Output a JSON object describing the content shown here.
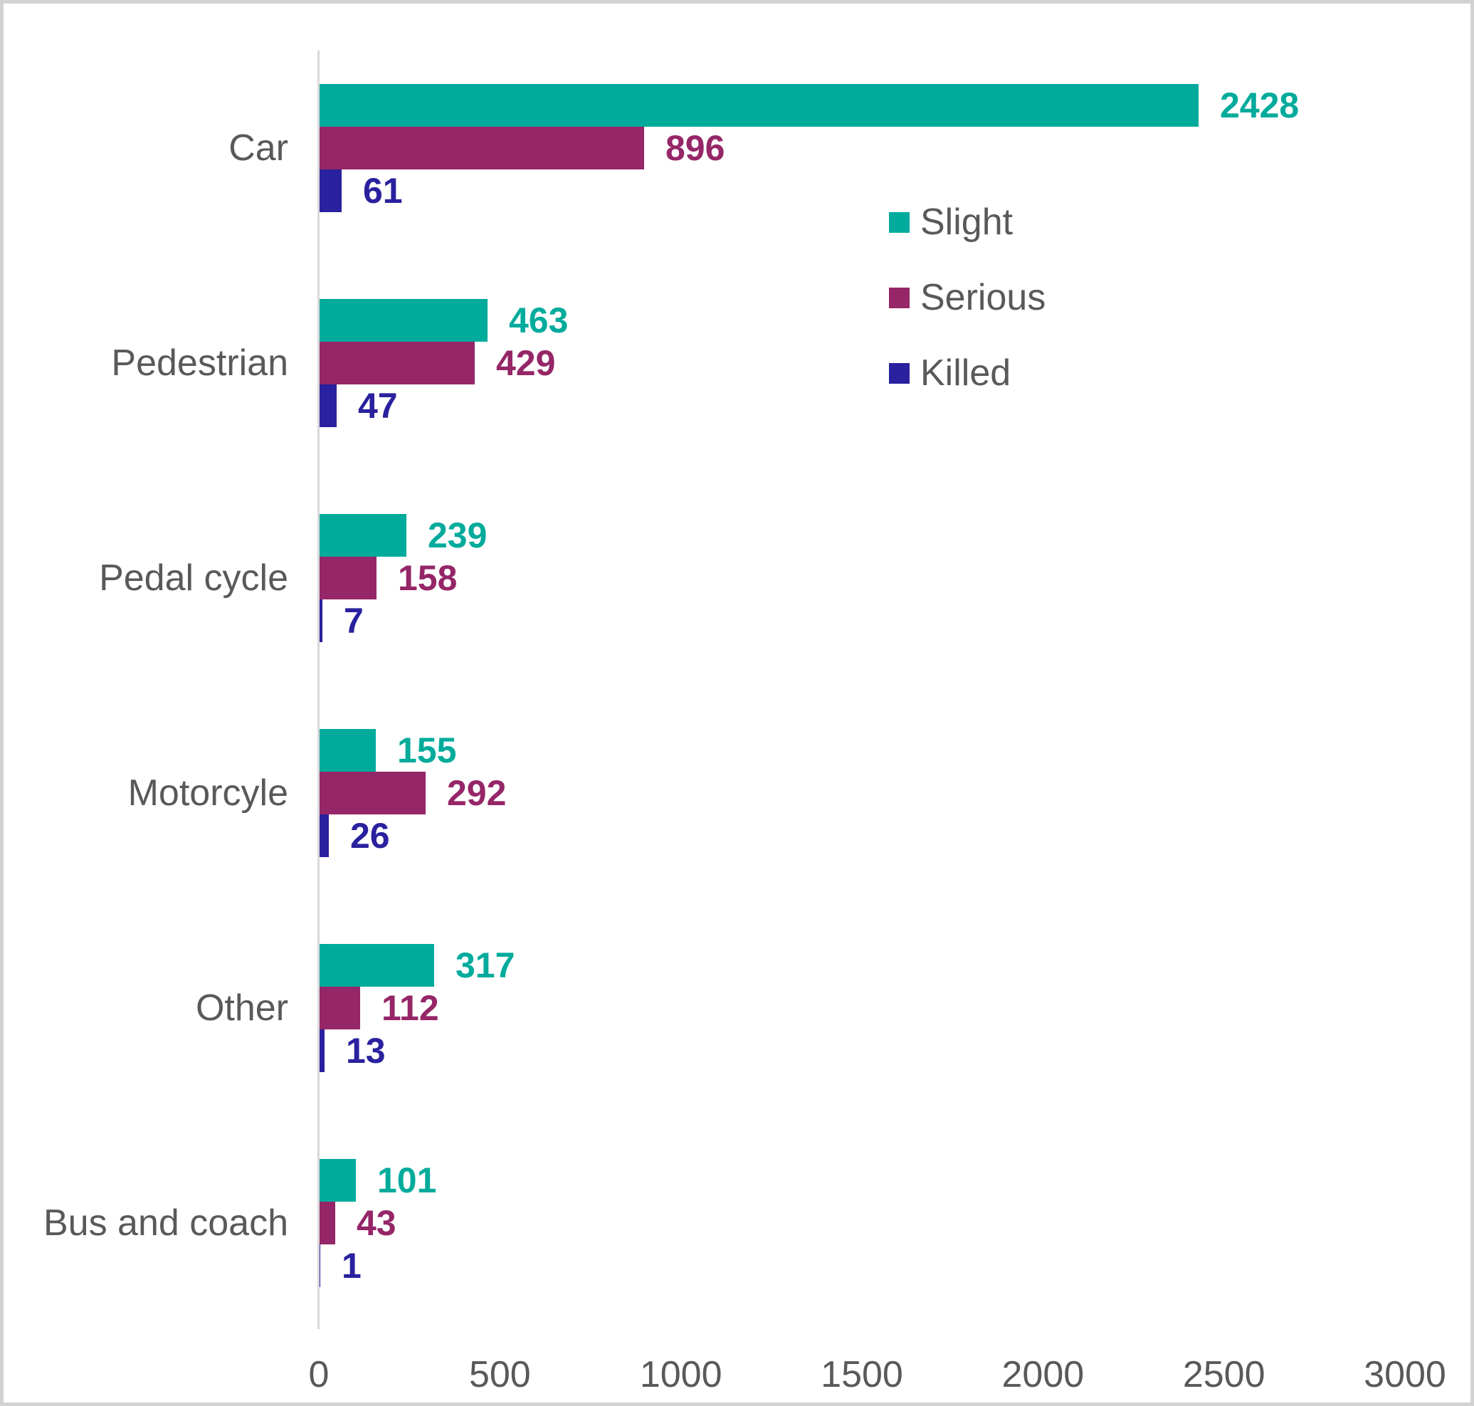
{
  "chart_data": {
    "type": "bar",
    "orientation": "horizontal",
    "title": "",
    "categories": [
      "Car",
      "Pedestrian",
      "Pedal cycle",
      "Motorcyle",
      "Other",
      "Bus and coach"
    ],
    "series": [
      {
        "name": "Slight",
        "color": "#00AB9B",
        "values": [
          2428,
          463,
          239,
          155,
          317,
          101
        ]
      },
      {
        "name": "Serious",
        "color": "#952667",
        "values": [
          896,
          429,
          158,
          292,
          112,
          43
        ]
      },
      {
        "name": "Killed",
        "color": "#29219E",
        "values": [
          61,
          47,
          7,
          26,
          13,
          1
        ]
      }
    ],
    "x_axis": {
      "min": 0,
      "max": 3000,
      "ticks": [
        "0",
        "500",
        "1000",
        "1500",
        "2000",
        "2500",
        "3000"
      ],
      "tick_values": [
        0,
        500,
        1000,
        1500,
        2000,
        2500,
        3000
      ]
    },
    "data_labels": true,
    "grid": false,
    "legend_position": "upper-right",
    "colors": {
      "text_gray": "#595959",
      "axis_line": "#d9d9d9"
    }
  }
}
